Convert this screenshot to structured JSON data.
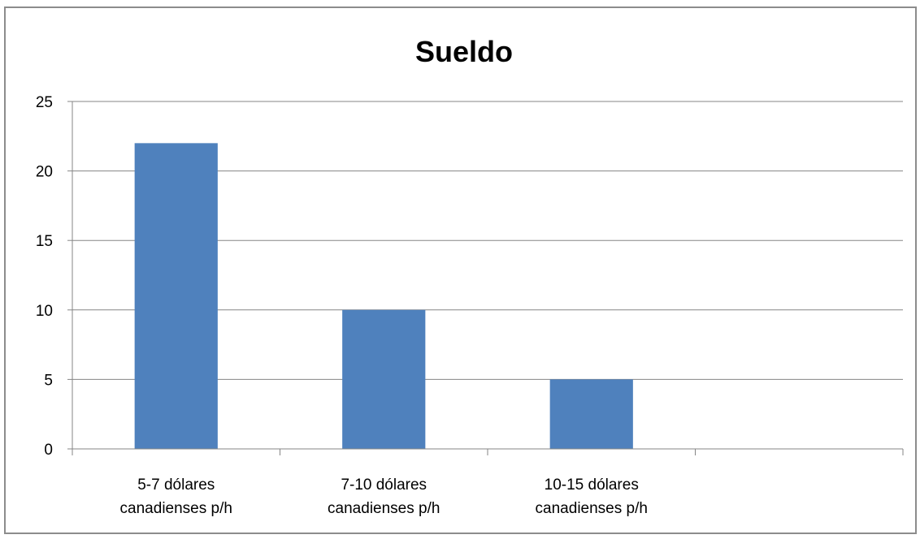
{
  "chart_data": {
    "type": "bar",
    "title": "Sueldo",
    "xlabel": "",
    "ylabel": "",
    "categories": [
      [
        "5-7 dólares",
        "canadienses p/h"
      ],
      [
        "7-10 dólares",
        "canadienses p/h"
      ],
      [
        "10-15 dólares",
        "canadienses p/h"
      ],
      []
    ],
    "values": [
      22,
      10,
      5,
      null
    ],
    "ylim": [
      0,
      25
    ],
    "yticks": [
      0,
      5,
      10,
      15,
      20,
      25
    ],
    "grid": true,
    "legend": "none",
    "colors": {
      "bar": "#4f81bd",
      "grid": "#868686",
      "axis": "#868686"
    }
  }
}
